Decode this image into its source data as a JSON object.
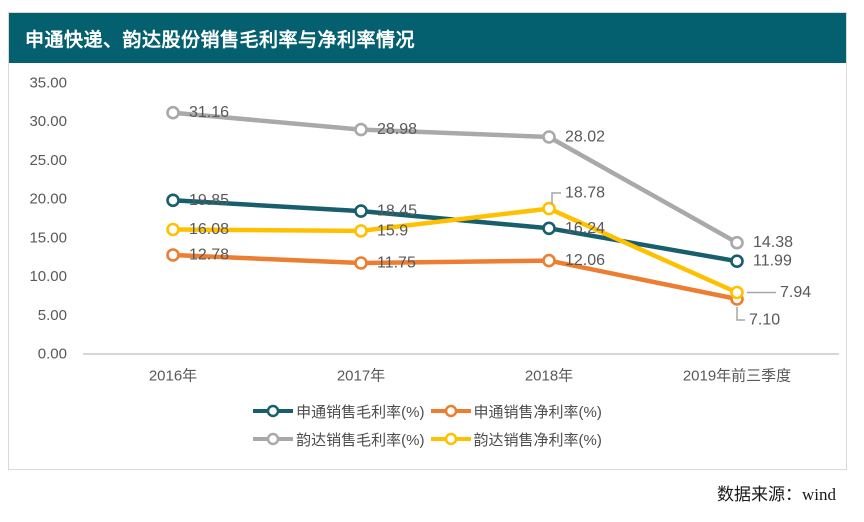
{
  "title": "申通快递、韵达股份销售毛利率与净利率情况",
  "source_note": "数据来源：wind",
  "colors": {
    "banner": "#04606F",
    "sto_gross": "#175F6D",
    "sto_net": "#ED7D31",
    "yunda_gross": "#A9A9A9",
    "yunda_net": "#FFC000",
    "label_text": "#595959",
    "axis_text": "#595959",
    "axis_line": "#C9C9C9",
    "leader_line": "#A6A6A6",
    "panel_border": "#D9D9D9"
  },
  "chart_data": {
    "type": "line",
    "title": "申通快递、韵达股份销售毛利率与净利率情况",
    "categories": [
      "2016年",
      "2017年",
      "2018年",
      "2019年前三季度"
    ],
    "series": [
      {
        "name": "申通销售毛利率(%)",
        "color_key": "sto_gross",
        "values": [
          19.85,
          18.45,
          16.24,
          11.99
        ],
        "labels": [
          "19.85",
          "18.45",
          "16.24",
          "11.99"
        ]
      },
      {
        "name": "申通销售净利率(%)",
        "color_key": "sto_net",
        "values": [
          12.78,
          11.75,
          12.06,
          7.1
        ],
        "labels": [
          "12.78",
          "11.75",
          "12.06",
          "7.10"
        ]
      },
      {
        "name": "韵达销售毛利率(%)",
        "color_key": "yunda_gross",
        "values": [
          31.16,
          28.98,
          28.02,
          14.38
        ],
        "labels": [
          "31.16",
          "28.98",
          "28.02",
          "14.38"
        ]
      },
      {
        "name": "韵达销售净利率(%)",
        "color_key": "yunda_net",
        "values": [
          16.08,
          15.9,
          18.78,
          7.94
        ],
        "labels": [
          "16.08",
          "15.9",
          "18.78",
          "7.94"
        ]
      }
    ],
    "ylim": [
      0,
      35
    ],
    "ytick_step": 5,
    "ytick_labels": [
      "35.00",
      "30.00",
      "25.00",
      "20.00",
      "15.00",
      "10.00",
      "5.00",
      "0.00"
    ],
    "grid": false,
    "legend_position": "bottom",
    "legend_rows": [
      [
        0,
        1
      ],
      [
        2,
        3
      ]
    ]
  }
}
